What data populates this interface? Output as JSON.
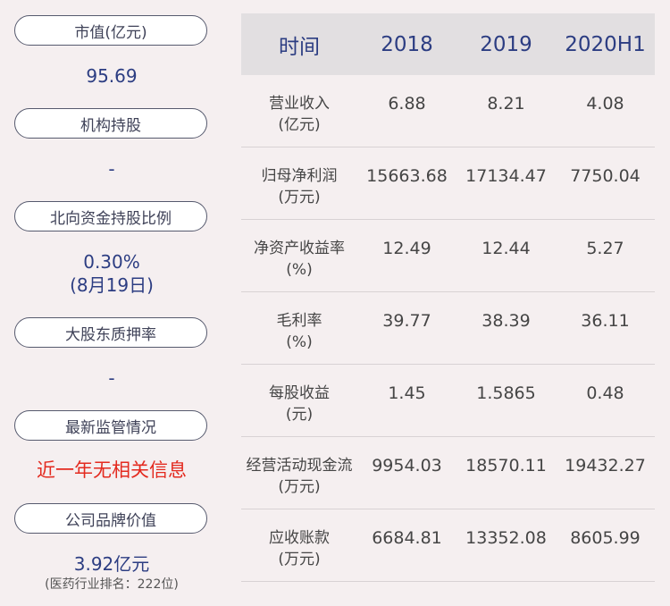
{
  "left_panel": {
    "items": [
      {
        "label": "市值(亿元)",
        "value": "95.69"
      },
      {
        "label": "机构持股",
        "value": "-"
      },
      {
        "label": "北向资金持股比例",
        "value": "0.30%",
        "value2": "(8月19日)"
      },
      {
        "label": "大股东质押率",
        "value": "-"
      },
      {
        "label": "最新监管情况",
        "value": "近一年无相关信息"
      },
      {
        "label": "公司品牌价值",
        "value": "3.92亿元",
        "note": "(医药行业排名：222位)"
      }
    ]
  },
  "table": {
    "header": [
      "时间",
      "2018",
      "2019",
      "2020H1"
    ],
    "rows": [
      {
        "metric": "营业收入",
        "unit": "(亿元)",
        "values": [
          "6.88",
          "8.21",
          "4.08"
        ]
      },
      {
        "metric": "归母净利润",
        "unit": "(万元)",
        "values": [
          "15663.68",
          "17134.47",
          "7750.04"
        ]
      },
      {
        "metric": "净资产收益率",
        "unit": "(%)",
        "values": [
          "12.49",
          "12.44",
          "5.27"
        ]
      },
      {
        "metric": "毛利率",
        "unit": "(%)",
        "values": [
          "39.77",
          "38.39",
          "36.11"
        ]
      },
      {
        "metric": "每股收益",
        "unit": "(元)",
        "values": [
          "1.45",
          "1.5865",
          "0.48"
        ]
      },
      {
        "metric": "经营活动现金流",
        "unit": "(万元)",
        "values": [
          "9954.03",
          "18570.11",
          "19432.27"
        ]
      },
      {
        "metric": "应收账款",
        "unit": "(万元)",
        "values": [
          "6684.81",
          "13352.08",
          "8605.99"
        ]
      }
    ]
  },
  "colors": {
    "background": "#f5eff0",
    "value_blue": "#2c3d82",
    "alert_red": "#e32a1f",
    "header_bg": "#e2dfe1"
  }
}
